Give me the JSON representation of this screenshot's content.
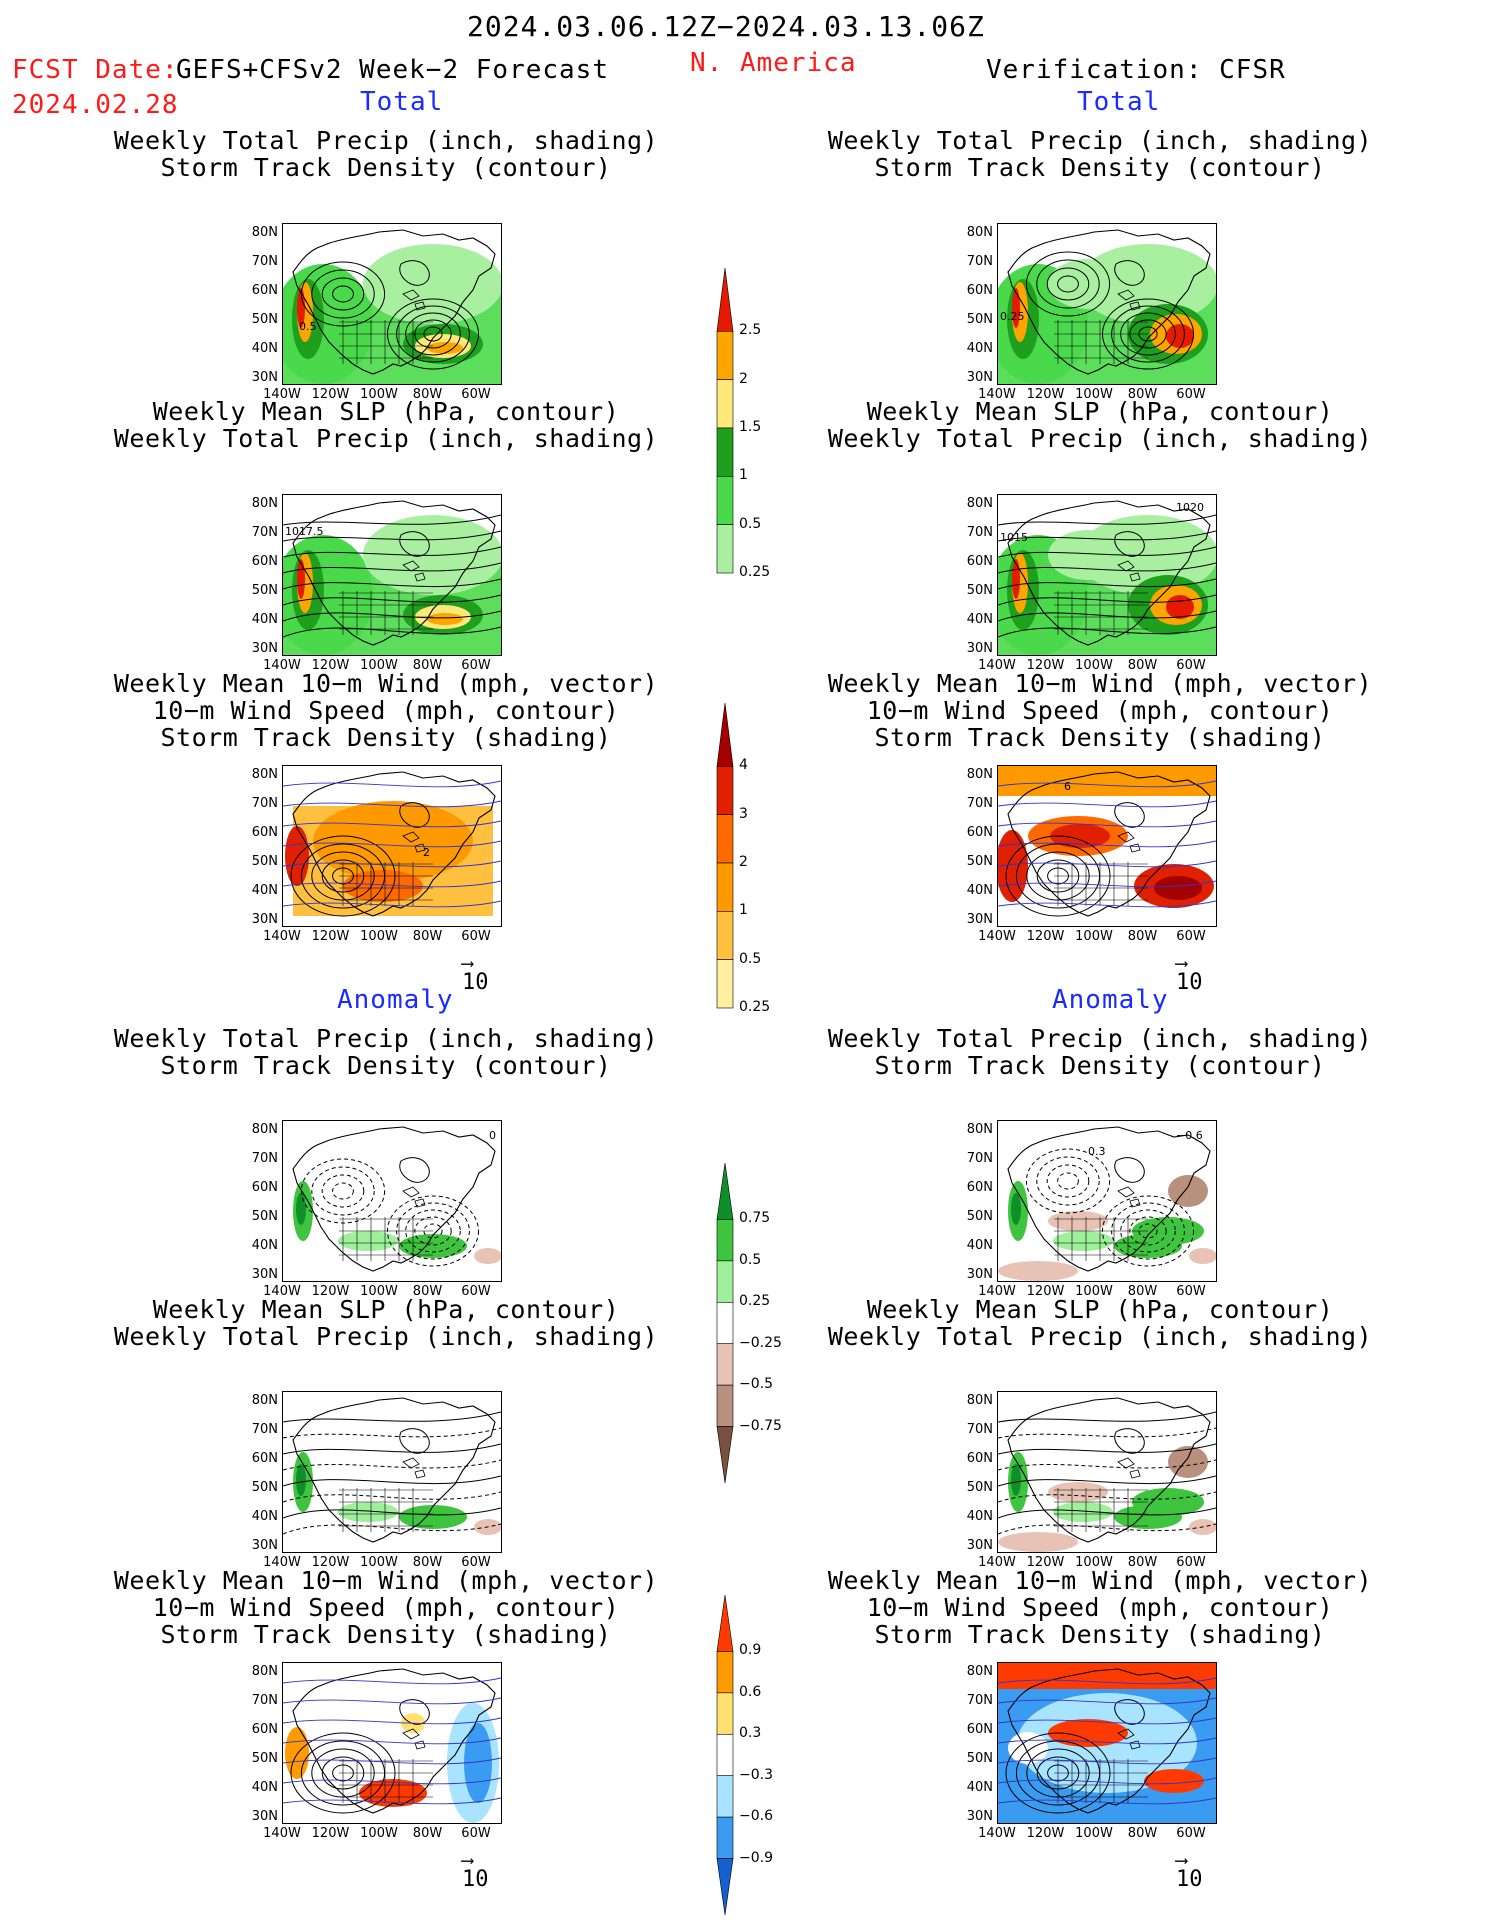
{
  "header": {
    "period": "2024.03.06.12Z−2024.03.13.06Z",
    "fcst_label": "FCST Date:",
    "fcst_date": "2024.02.28",
    "model": "GEFS+CFSv2 Week−2 Forecast",
    "region": "N. America",
    "verification": "Verification: CFSR"
  },
  "sections": {
    "total": "Total",
    "anomaly": "Anomaly"
  },
  "titles": {
    "precip_storm": [
      "Weekly Total Precip (inch, shading)",
      "Storm Track Density (contour)"
    ],
    "slp_precip": [
      "Weekly Mean SLP (hPa, contour)",
      "Weekly Total Precip (inch, shading)"
    ],
    "wind_storm": [
      "Weekly Mean 10−m Wind (mph, vector)",
      "10−m Wind Speed (mph, contour)",
      "Storm Track Density (shading)"
    ]
  },
  "axes": {
    "lat": [
      "80N",
      "70N",
      "60N",
      "50N",
      "40N",
      "30N"
    ],
    "lon": [
      "140W",
      "120W",
      "100W",
      "80W",
      "60W"
    ]
  },
  "reference_vector": "10",
  "contour_labels": {
    "fcst_precip": "0.5",
    "verif_precip": "0.25",
    "fcst_slp": "1017.5",
    "verif_slp_a": "1020",
    "verif_slp_b": "1015",
    "fcst_wind": "2",
    "verif_wind": "6",
    "anom_fcst_precip": "0",
    "anom_verif_precip_a": "0.3",
    "anom_verif_precip_b": "−0.6"
  },
  "colorbars": {
    "total_precip": {
      "labels": [
        "2.5",
        "2",
        "1.5",
        "1",
        "0.5",
        "0.25"
      ],
      "colors": [
        "#e51a00",
        "#ffa500",
        "#ffe87a",
        "#1e9f1e",
        "#4ad94a",
        "#a8f0a0"
      ]
    },
    "total_storm": {
      "labels": [
        "4",
        "3",
        "2",
        "1",
        "0.5",
        "0.25"
      ],
      "colors": [
        "#a50000",
        "#e02000",
        "#ff6a00",
        "#ff9900",
        "#ffc040",
        "#ffef9e"
      ]
    },
    "anom_precip": {
      "labels": [
        "0.75",
        "0.5",
        "0.25",
        "−0.25",
        "−0.5",
        "−0.75"
      ],
      "colors": [
        "#0f8f2a",
        "#3ec43e",
        "#9ef09a",
        "#ffffff",
        "#e8c3b5",
        "#b9907e",
        "#7a5040"
      ]
    },
    "anom_storm": {
      "labels": [
        "0.9",
        "0.6",
        "0.3",
        "−0.3",
        "−0.6",
        "−0.9"
      ],
      "colors": [
        "#ff3a00",
        "#ff9a00",
        "#ffe070",
        "#ffffff",
        "#a8e4ff",
        "#3a9cf0",
        "#1560d0"
      ]
    }
  }
}
